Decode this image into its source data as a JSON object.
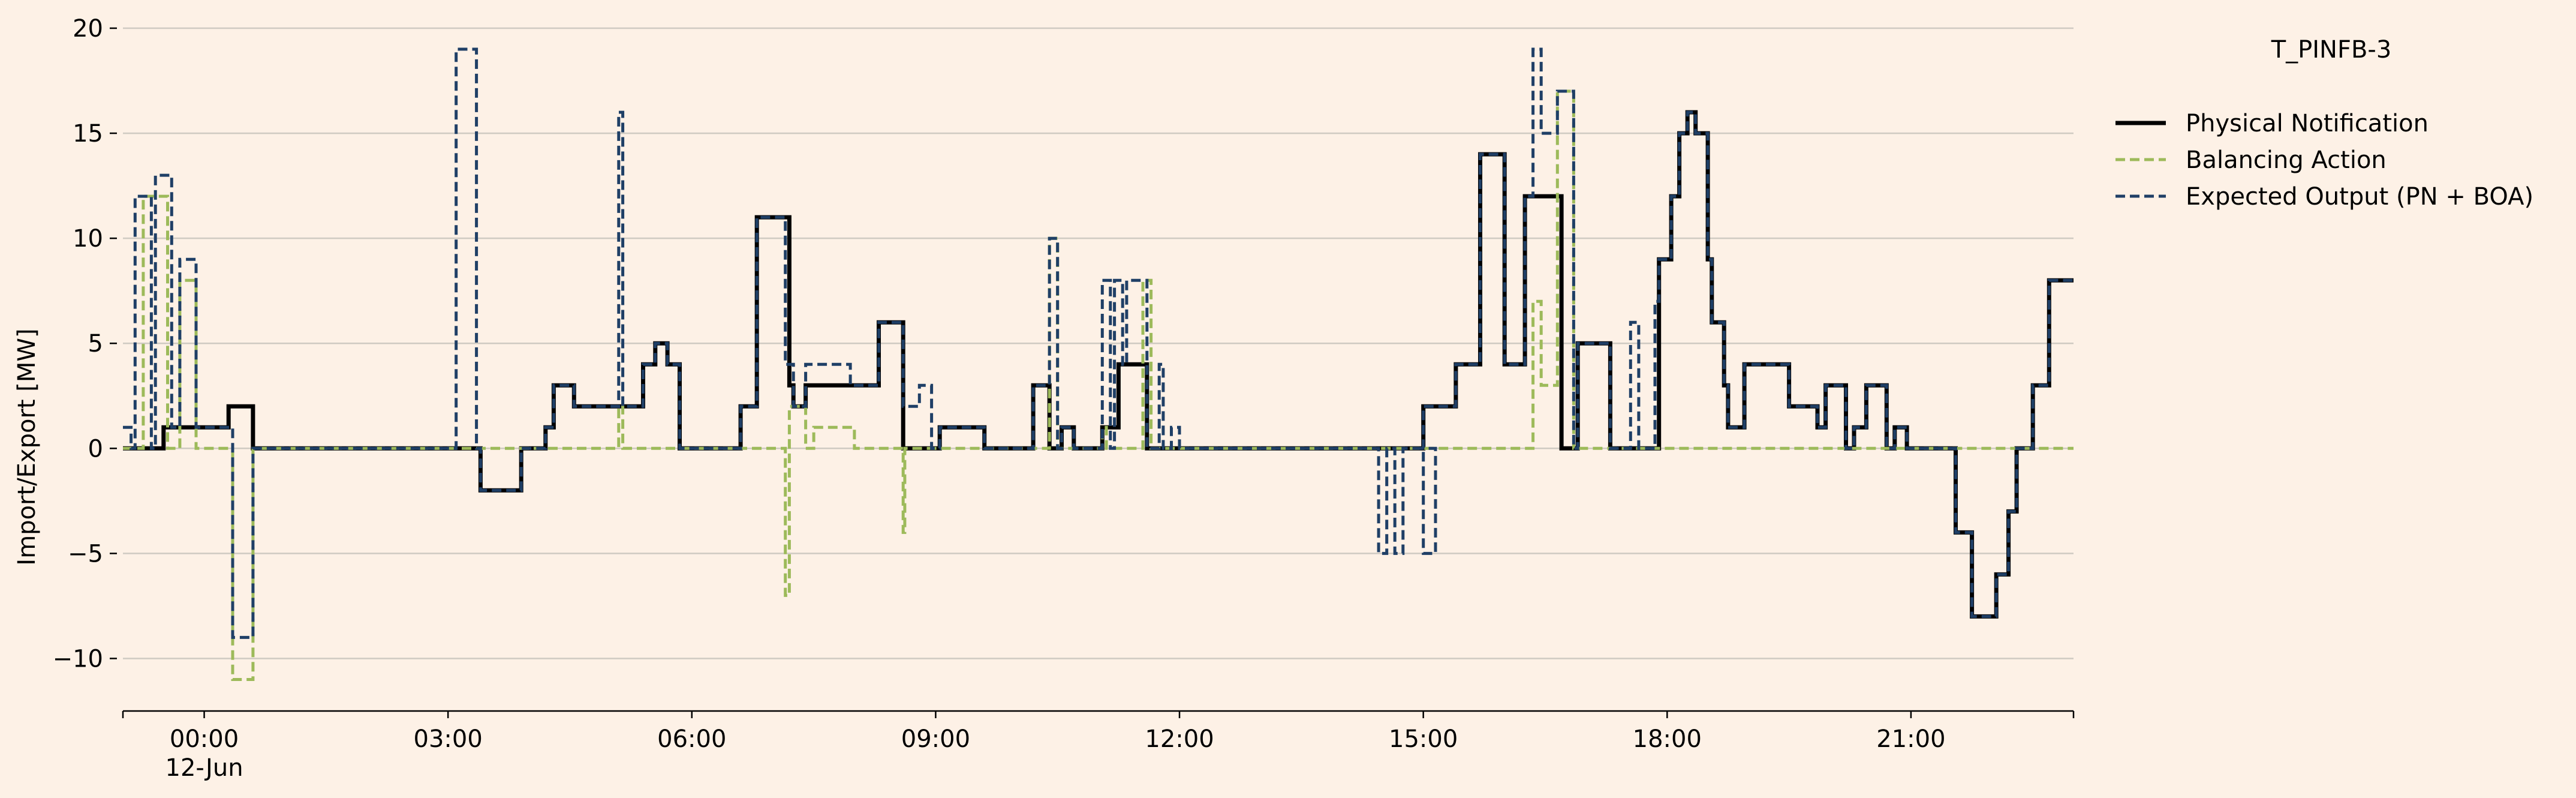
{
  "chart_data": {
    "type": "line",
    "title": "T_PINFB-3",
    "ylabel": "Import/Export [MW]",
    "xlabel": "",
    "ylim": [
      -12.5,
      20
    ],
    "yticks": [
      -10,
      -5,
      0,
      5,
      10,
      15,
      20
    ],
    "ytick_labels": [
      "−10",
      "−5",
      "0",
      "5",
      "10",
      "15",
      "20"
    ],
    "xlim_hours": [
      -1,
      23
    ],
    "xticks": [
      {
        "hour": 0,
        "label": "00:00",
        "sublabel": "12-Jun"
      },
      {
        "hour": 3,
        "label": "03:00",
        "sublabel": ""
      },
      {
        "hour": 6,
        "label": "06:00",
        "sublabel": ""
      },
      {
        "hour": 9,
        "label": "09:00",
        "sublabel": ""
      },
      {
        "hour": 12,
        "label": "12:00",
        "sublabel": ""
      },
      {
        "hour": 15,
        "label": "15:00",
        "sublabel": ""
      },
      {
        "hour": 18,
        "label": "18:00",
        "sublabel": ""
      },
      {
        "hour": 21,
        "label": "21:00",
        "sublabel": ""
      }
    ],
    "grid": "horizontal",
    "legend_position": "right",
    "series": [
      {
        "name": "Physical Notification",
        "color": "#000000",
        "style": "solid",
        "points": [
          [
            -1,
            0
          ],
          [
            -0.5,
            1
          ],
          [
            0.3,
            2
          ],
          [
            0.6,
            0
          ],
          [
            3.4,
            -2
          ],
          [
            3.9,
            0
          ],
          [
            4.2,
            1
          ],
          [
            4.3,
            3
          ],
          [
            4.55,
            2
          ],
          [
            5.4,
            4
          ],
          [
            5.55,
            5
          ],
          [
            5.7,
            4
          ],
          [
            5.85,
            0
          ],
          [
            6.6,
            2
          ],
          [
            6.8,
            11
          ],
          [
            7.2,
            3
          ],
          [
            7.25,
            2
          ],
          [
            7.4,
            3
          ],
          [
            8.3,
            6
          ],
          [
            8.6,
            0
          ],
          [
            9.05,
            1
          ],
          [
            9.6,
            0
          ],
          [
            10.2,
            3
          ],
          [
            10.4,
            0
          ],
          [
            10.55,
            1
          ],
          [
            10.7,
            0
          ],
          [
            11.05,
            1
          ],
          [
            11.25,
            4
          ],
          [
            11.6,
            0
          ],
          [
            15,
            2
          ],
          [
            15.4,
            4
          ],
          [
            15.7,
            14
          ],
          [
            16.0,
            4
          ],
          [
            16.25,
            12
          ],
          [
            16.7,
            0
          ],
          [
            16.9,
            5
          ],
          [
            17.3,
            0
          ],
          [
            17.9,
            9
          ],
          [
            18.05,
            12
          ],
          [
            18.15,
            15
          ],
          [
            18.25,
            16
          ],
          [
            18.35,
            15
          ],
          [
            18.5,
            9
          ],
          [
            18.55,
            6
          ],
          [
            18.7,
            3
          ],
          [
            18.75,
            1
          ],
          [
            18.95,
            4
          ],
          [
            19.5,
            2
          ],
          [
            19.85,
            1
          ],
          [
            19.95,
            3
          ],
          [
            20.2,
            0
          ],
          [
            20.3,
            1
          ],
          [
            20.45,
            3
          ],
          [
            20.7,
            0
          ],
          [
            20.8,
            1
          ],
          [
            20.95,
            0
          ],
          [
            21.55,
            -4
          ],
          [
            21.75,
            -8
          ],
          [
            22.05,
            -6
          ],
          [
            22.2,
            -3
          ],
          [
            22.3,
            0
          ],
          [
            22.5,
            3
          ],
          [
            22.7,
            8
          ],
          [
            23,
            8
          ]
        ]
      },
      {
        "name": "Balancing Action",
        "color": "#9DBA5A",
        "style": "dashed",
        "points": [
          [
            -1,
            0
          ],
          [
            -0.75,
            12
          ],
          [
            -0.45,
            0
          ],
          [
            -0.3,
            8
          ],
          [
            -0.1,
            0
          ],
          [
            0.35,
            -11
          ],
          [
            0.6,
            0
          ],
          [
            5.1,
            2
          ],
          [
            5.15,
            0
          ],
          [
            7.15,
            -7
          ],
          [
            7.2,
            2
          ],
          [
            7.4,
            0
          ],
          [
            7.5,
            1
          ],
          [
            8.0,
            0
          ],
          [
            8.6,
            -4
          ],
          [
            8.62,
            0
          ],
          [
            10.4,
            10
          ],
          [
            10.5,
            0
          ],
          [
            11.05,
            1
          ],
          [
            11.1,
            0
          ],
          [
            11.55,
            8
          ],
          [
            11.65,
            0
          ],
          [
            16.35,
            7
          ],
          [
            16.45,
            3
          ],
          [
            16.65,
            17
          ],
          [
            16.85,
            0
          ],
          [
            23,
            0
          ]
        ]
      },
      {
        "name": "Expected Output (PN + BOA)",
        "color": "#1F3F66",
        "style": "dashed",
        "points": [
          [
            -1,
            1
          ],
          [
            -0.9,
            0
          ],
          [
            -0.85,
            12
          ],
          [
            -0.65,
            0
          ],
          [
            -0.6,
            13
          ],
          [
            -0.4,
            1
          ],
          [
            -0.3,
            9
          ],
          [
            -0.1,
            1
          ],
          [
            0.35,
            -9
          ],
          [
            0.6,
            0
          ],
          [
            3.1,
            19
          ],
          [
            3.35,
            0
          ],
          [
            3.4,
            -2
          ],
          [
            3.9,
            0
          ],
          [
            4.2,
            1
          ],
          [
            4.3,
            3
          ],
          [
            4.55,
            2
          ],
          [
            5.1,
            16
          ],
          [
            5.15,
            2
          ],
          [
            5.4,
            4
          ],
          [
            5.55,
            5
          ],
          [
            5.7,
            4
          ],
          [
            5.85,
            0
          ],
          [
            6.6,
            2
          ],
          [
            6.8,
            11
          ],
          [
            7.15,
            4
          ],
          [
            7.25,
            2
          ],
          [
            7.4,
            4
          ],
          [
            7.95,
            3
          ],
          [
            8.3,
            6
          ],
          [
            8.6,
            2
          ],
          [
            8.8,
            3
          ],
          [
            8.95,
            0
          ],
          [
            9.05,
            1
          ],
          [
            9.6,
            0
          ],
          [
            10.2,
            3
          ],
          [
            10.4,
            10
          ],
          [
            10.5,
            0
          ],
          [
            10.55,
            1
          ],
          [
            10.7,
            0
          ],
          [
            11.05,
            8
          ],
          [
            11.15,
            0
          ],
          [
            11.2,
            8
          ],
          [
            11.3,
            4
          ],
          [
            11.35,
            8
          ],
          [
            11.6,
            0
          ],
          [
            11.75,
            4
          ],
          [
            11.8,
            0
          ],
          [
            11.9,
            1
          ],
          [
            12.0,
            0
          ],
          [
            14.45,
            -5
          ],
          [
            14.55,
            0
          ],
          [
            14.65,
            -5
          ],
          [
            14.75,
            0
          ],
          [
            15.0,
            -5
          ],
          [
            15.15,
            0
          ],
          [
            15.0,
            2
          ],
          [
            15.4,
            4
          ],
          [
            15.7,
            14
          ],
          [
            16.0,
            4
          ],
          [
            16.25,
            12
          ],
          [
            16.35,
            19
          ],
          [
            16.45,
            15
          ],
          [
            16.65,
            17
          ],
          [
            16.85,
            0
          ],
          [
            16.9,
            5
          ],
          [
            17.3,
            0
          ],
          [
            17.55,
            6
          ],
          [
            17.65,
            0
          ],
          [
            17.85,
            7
          ],
          [
            17.9,
            9
          ],
          [
            18.05,
            12
          ],
          [
            18.15,
            15
          ],
          [
            18.25,
            16
          ],
          [
            18.35,
            15
          ],
          [
            18.5,
            9
          ],
          [
            18.55,
            6
          ],
          [
            18.7,
            3
          ],
          [
            18.75,
            1
          ],
          [
            18.95,
            4
          ],
          [
            19.5,
            2
          ],
          [
            19.85,
            1
          ],
          [
            19.95,
            3
          ],
          [
            20.2,
            0
          ],
          [
            20.3,
            1
          ],
          [
            20.45,
            3
          ],
          [
            20.7,
            0
          ],
          [
            20.8,
            1
          ],
          [
            20.95,
            0
          ],
          [
            21.55,
            -4
          ],
          [
            21.75,
            -8
          ],
          [
            22.05,
            -6
          ],
          [
            22.2,
            -3
          ],
          [
            22.3,
            0
          ],
          [
            22.5,
            3
          ],
          [
            22.7,
            8
          ],
          [
            23,
            8
          ]
        ]
      }
    ]
  }
}
